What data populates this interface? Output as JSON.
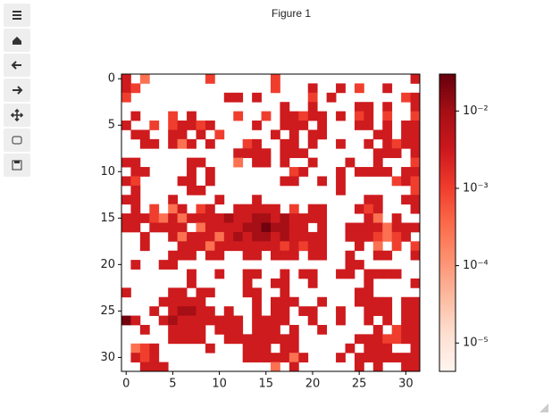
{
  "window_title": "Figure 1",
  "chart_data": {
    "type": "heatmap",
    "colormap": "Reds",
    "log_scale": true,
    "xlim": [
      -0.5,
      31.5
    ],
    "ylim": [
      31.5,
      -0.5
    ],
    "xticks": [
      0,
      5,
      10,
      15,
      20,
      25,
      30
    ],
    "yticks": [
      0,
      5,
      10,
      15,
      20,
      25,
      30
    ],
    "clim": [
      4.3e-06,
      0.03
    ],
    "cticks": [
      {
        "value": 1e-05,
        "label": "10⁻⁵"
      },
      {
        "value": 0.0001,
        "label": "10⁻⁴"
      },
      {
        "value": 0.001,
        "label": "10⁻³"
      },
      {
        "value": 0.01,
        "label": "10⁻²"
      }
    ],
    "values": [
      [
        0.003,
        null,
        0.0003,
        null,
        null,
        null,
        null,
        null,
        null,
        0.001,
        null,
        null,
        null,
        null,
        null,
        null,
        0.001,
        null,
        null,
        null,
        null,
        null,
        null,
        null,
        null,
        null,
        null,
        null,
        null,
        null,
        null,
        0.003
      ],
      [
        0.003,
        0.001,
        null,
        null,
        null,
        null,
        null,
        null,
        null,
        null,
        null,
        null,
        null,
        null,
        null,
        null,
        0.001,
        null,
        null,
        null,
        0.003,
        null,
        null,
        0.003,
        null,
        0.001,
        null,
        null,
        0.003,
        null,
        null,
        null
      ],
      [
        0.001,
        null,
        null,
        null,
        null,
        null,
        null,
        null,
        null,
        null,
        null,
        0.003,
        0.003,
        null,
        0.003,
        null,
        null,
        null,
        null,
        null,
        0.001,
        null,
        0.003,
        null,
        null,
        null,
        null,
        null,
        null,
        null,
        0.001,
        0.003
      ],
      [
        null,
        null,
        null,
        null,
        null,
        null,
        null,
        null,
        null,
        null,
        null,
        null,
        null,
        null,
        null,
        null,
        null,
        0.003,
        null,
        null,
        0.003,
        null,
        null,
        null,
        null,
        0.003,
        0.003,
        null,
        0.003,
        null,
        null,
        0.003
      ],
      [
        null,
        0.003,
        null,
        null,
        null,
        0.001,
        null,
        0.003,
        null,
        null,
        null,
        null,
        0.001,
        null,
        null,
        0.001,
        null,
        0.003,
        0.003,
        0.001,
        0.003,
        0.003,
        null,
        0.003,
        null,
        0.001,
        0.003,
        null,
        0.001,
        null,
        null,
        0.001
      ],
      [
        0.003,
        null,
        null,
        0.001,
        null,
        0.001,
        0.003,
        0.003,
        0.001,
        0.003,
        null,
        null,
        null,
        null,
        0.003,
        null,
        null,
        0.003,
        0.003,
        0.003,
        null,
        0.003,
        null,
        null,
        null,
        0.003,
        0.003,
        null,
        0.003,
        null,
        0.003,
        0.003
      ],
      [
        null,
        0.003,
        0.003,
        null,
        null,
        0.003,
        0.003,
        null,
        0.003,
        null,
        0.001,
        null,
        null,
        null,
        null,
        null,
        0.003,
        null,
        0.003,
        null,
        0.003,
        0.003,
        null,
        null,
        null,
        null,
        null,
        0.003,
        0.003,
        null,
        0.003,
        0.003
      ],
      [
        null,
        null,
        0.003,
        0.003,
        null,
        0.003,
        0.0003,
        0.003,
        null,
        0.003,
        null,
        null,
        null,
        0.001,
        0.003,
        null,
        null,
        0.003,
        0.003,
        null,
        0.003,
        null,
        null,
        0.003,
        null,
        null,
        0.003,
        null,
        0.003,
        0.001,
        0.003,
        0.003
      ],
      [
        null,
        null,
        null,
        null,
        null,
        null,
        null,
        null,
        null,
        null,
        null,
        null,
        0.003,
        0.003,
        0.003,
        0.003,
        null,
        0.003,
        0.003,
        0.003,
        null,
        null,
        null,
        null,
        null,
        null,
        null,
        0.003,
        0.003,
        0.003,
        null,
        0.003
      ],
      [
        0.003,
        0.003,
        null,
        null,
        null,
        null,
        null,
        0.003,
        0.003,
        null,
        null,
        null,
        0.0003,
        null,
        0.003,
        0.003,
        null,
        0.003,
        null,
        null,
        0.003,
        null,
        null,
        null,
        0.003,
        null,
        null,
        0.003,
        null,
        null,
        null,
        0.001
      ],
      [
        null,
        0.003,
        0.003,
        null,
        null,
        null,
        null,
        0.003,
        null,
        0.003,
        null,
        null,
        null,
        null,
        null,
        null,
        null,
        null,
        0.001,
        0.003,
        null,
        null,
        null,
        0.003,
        null,
        0.003,
        0.003,
        0.003,
        0.003,
        null,
        0.003,
        0.003
      ],
      [
        0.003,
        0.001,
        null,
        null,
        null,
        null,
        0.003,
        0.003,
        null,
        0.003,
        null,
        null,
        null,
        null,
        null,
        null,
        null,
        0.003,
        0.003,
        null,
        null,
        0.003,
        null,
        0.003,
        null,
        null,
        null,
        null,
        null,
        0.001,
        0.003,
        0.001
      ],
      [
        null,
        0.003,
        null,
        null,
        null,
        null,
        null,
        0.003,
        0.003,
        null,
        null,
        null,
        null,
        null,
        null,
        null,
        null,
        null,
        null,
        null,
        null,
        null,
        null,
        0.003,
        null,
        null,
        null,
        null,
        null,
        null,
        null,
        0.001
      ],
      [
        0.003,
        0.003,
        null,
        null,
        null,
        0.003,
        null,
        null,
        null,
        null,
        0.003,
        null,
        null,
        null,
        0.003,
        null,
        null,
        null,
        null,
        null,
        null,
        null,
        null,
        null,
        null,
        null,
        0.003,
        0.003,
        null,
        null,
        0.003,
        0.003
      ],
      [
        null,
        0.003,
        null,
        0.001,
        null,
        0.0003,
        0.003,
        null,
        0.001,
        0.003,
        null,
        null,
        0.003,
        0.003,
        0.003,
        0.003,
        0.003,
        null,
        0.001,
        null,
        0.003,
        0.003,
        null,
        null,
        null,
        0.003,
        0.001,
        0.003,
        null,
        null,
        null,
        0.003
      ],
      [
        0.003,
        0.003,
        0.003,
        0.001,
        0.0003,
        0.003,
        0.0003,
        0.003,
        0.003,
        0.003,
        0.003,
        0.01,
        0.003,
        0.003,
        0.01,
        0.01,
        0.003,
        0.01,
        0.003,
        0.003,
        0.003,
        0.003,
        null,
        null,
        null,
        null,
        0.003,
        0.0003,
        null,
        0.003,
        null,
        null
      ],
      [
        0.003,
        0.003,
        null,
        0.003,
        0.003,
        0.003,
        0.003,
        null,
        0.0003,
        0.003,
        0.003,
        0.003,
        0.003,
        0.01,
        0.01,
        0.025,
        0.01,
        0.01,
        0.003,
        0.003,
        null,
        0.003,
        null,
        null,
        0.003,
        0.003,
        0.003,
        0.003,
        0.0003,
        0.003,
        0.003,
        0.003
      ],
      [
        null,
        null,
        0.003,
        null,
        null,
        0.003,
        0.0003,
        0.003,
        0.003,
        0.003,
        0.0003,
        0.003,
        0.01,
        0.003,
        0.01,
        0.01,
        0.003,
        0.01,
        0.003,
        0.003,
        0.003,
        0.003,
        null,
        null,
        0.003,
        0.003,
        0.003,
        0.001,
        0.0003,
        0.001,
        0.003,
        null
      ],
      [
        null,
        null,
        0.003,
        null,
        null,
        null,
        0.003,
        0.003,
        0.003,
        0.0003,
        0.003,
        0.003,
        0.003,
        0.003,
        0.003,
        0.003,
        0.003,
        0.001,
        0.003,
        0.001,
        0.003,
        0.003,
        null,
        null,
        null,
        0.003,
        null,
        0.0003,
        null,
        0.001,
        null,
        0.001
      ],
      [
        null,
        null,
        null,
        null,
        null,
        0.003,
        0.003,
        0.003,
        null,
        0.003,
        0.003,
        null,
        null,
        0.003,
        0.003,
        null,
        0.003,
        0.003,
        0.003,
        null,
        0.003,
        0.003,
        null,
        null,
        0.003,
        null,
        null,
        0.003,
        0.003,
        null,
        null,
        0.003
      ],
      [
        null,
        0.003,
        null,
        null,
        0.003,
        0.003,
        null,
        null,
        null,
        null,
        null,
        null,
        null,
        null,
        null,
        null,
        null,
        null,
        null,
        null,
        null,
        null,
        null,
        null,
        0.003,
        0.003,
        null,
        null,
        null,
        null,
        null,
        null
      ],
      [
        null,
        null,
        null,
        null,
        null,
        null,
        null,
        0.003,
        null,
        null,
        0.003,
        null,
        null,
        0.003,
        0.003,
        null,
        null,
        0.003,
        null,
        0.003,
        0.003,
        null,
        null,
        0.003,
        0.003,
        null,
        0.003,
        0.003,
        0.003,
        0.003,
        null,
        null
      ],
      [
        null,
        null,
        null,
        null,
        null,
        null,
        null,
        0.003,
        null,
        null,
        null,
        null,
        null,
        0.003,
        null,
        null,
        0.003,
        0.003,
        null,
        null,
        0.003,
        null,
        null,
        null,
        null,
        null,
        0.003,
        null,
        null,
        null,
        null,
        0.003
      ],
      [
        0.003,
        null,
        null,
        null,
        null,
        0.003,
        0.003,
        null,
        0.003,
        0.003,
        null,
        null,
        null,
        0.003,
        0.003,
        null,
        null,
        0.003,
        null,
        null,
        null,
        null,
        null,
        null,
        null,
        0.003,
        0.003,
        null,
        null,
        null,
        null,
        null
      ],
      [
        null,
        null,
        null,
        null,
        0.003,
        0.003,
        0.003,
        0.003,
        0.003,
        null,
        null,
        null,
        null,
        null,
        0.003,
        null,
        0.003,
        0.003,
        0.003,
        null,
        null,
        0.003,
        null,
        null,
        null,
        0.003,
        0.003,
        0.003,
        0.003,
        null,
        0.003,
        0.003
      ],
      [
        null,
        null,
        null,
        0.003,
        null,
        0.003,
        0.01,
        0.01,
        0.003,
        0.003,
        null,
        0.003,
        null,
        null,
        0.003,
        null,
        0.003,
        0.003,
        null,
        0.003,
        0.003,
        null,
        null,
        0.003,
        null,
        null,
        0.003,
        0.003,
        0.003,
        null,
        0.003,
        0.003
      ],
      [
        0.025,
        0.003,
        null,
        null,
        0.003,
        0.01,
        0.003,
        0.003,
        0.003,
        0.003,
        0.003,
        0.003,
        0.003,
        null,
        0.003,
        0.003,
        0.003,
        0.003,
        null,
        null,
        0.003,
        null,
        null,
        0.003,
        null,
        null,
        0.003,
        null,
        0.003,
        null,
        0.003,
        0.003
      ],
      [
        null,
        null,
        0.003,
        null,
        null,
        0.003,
        0.003,
        0.003,
        0.003,
        null,
        0.003,
        0.003,
        0.003,
        null,
        0.003,
        0.003,
        0.003,
        null,
        0.003,
        null,
        null,
        0.003,
        null,
        null,
        null,
        null,
        null,
        0.003,
        null,
        0.001,
        0.003,
        0.003
      ],
      [
        null,
        null,
        null,
        null,
        null,
        0.003,
        0.003,
        0.003,
        0.003,
        null,
        null,
        0.003,
        0.003,
        0.003,
        0.003,
        0.003,
        0.003,
        0.003,
        0.003,
        null,
        null,
        null,
        null,
        null,
        null,
        0.003,
        0.003,
        0.003,
        0.001,
        0.001,
        0.003,
        0.003
      ],
      [
        null,
        0.0003,
        0.001,
        0.003,
        null,
        null,
        null,
        null,
        null,
        0.003,
        null,
        null,
        null,
        0.003,
        0.003,
        0.003,
        null,
        0.003,
        0.003,
        null,
        null,
        null,
        null,
        null,
        0.003,
        null,
        0.003,
        0.003,
        0.003,
        null,
        null,
        0.003
      ],
      [
        null,
        0.003,
        0.001,
        0.003,
        null,
        null,
        null,
        null,
        null,
        null,
        null,
        null,
        null,
        0.003,
        0.003,
        0.003,
        0.003,
        0.003,
        0.0003,
        0.003,
        null,
        null,
        null,
        0.003,
        null,
        0.003,
        0.003,
        0.003,
        0.003,
        0.003,
        0.003,
        0.003
      ],
      [
        null,
        null,
        0.003,
        0.003,
        0.003,
        null,
        null,
        null,
        null,
        null,
        null,
        null,
        null,
        null,
        null,
        null,
        0.0003,
        null,
        0.003,
        null,
        null,
        null,
        null,
        null,
        null,
        0.003,
        null,
        0.003,
        null,
        null,
        0.003,
        0.003
      ]
    ]
  }
}
